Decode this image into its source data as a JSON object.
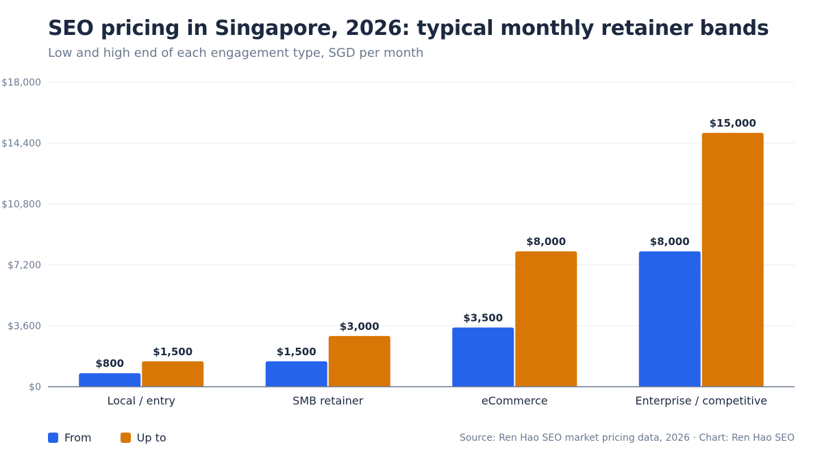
{
  "chart_data": {
    "type": "bar",
    "title": "SEO pricing in Singapore, 2026: typical monthly retainer bands",
    "subtitle": "Low and high end of each engagement type, SGD per month",
    "categories": [
      "Local / entry",
      "SMB retainer",
      "eCommerce",
      "Enterprise / competitive"
    ],
    "series": [
      {
        "name": "From",
        "values": [
          800,
          1500,
          3500,
          8000
        ],
        "labels": [
          "$800",
          "$1,500",
          "$3,500",
          "$8,000"
        ],
        "color": "#2563eb"
      },
      {
        "name": "Up to",
        "values": [
          1500,
          3000,
          8000,
          15000
        ],
        "labels": [
          "$1,500",
          "$3,000",
          "$8,000",
          "$15,000"
        ],
        "color": "#d97706"
      }
    ],
    "ylim": [
      0,
      18000
    ],
    "yticks": [
      0,
      3600,
      7200,
      10800,
      14400,
      18000
    ],
    "ytick_labels": [
      "$0",
      "$3,600",
      "$7,200",
      "$10,800",
      "$14,400",
      "$18,000"
    ],
    "grid": true,
    "legend_position": "bottom-left",
    "source": "Source: Ren Hao SEO market pricing data, 2026 · Chart: Ren Hao SEO"
  }
}
